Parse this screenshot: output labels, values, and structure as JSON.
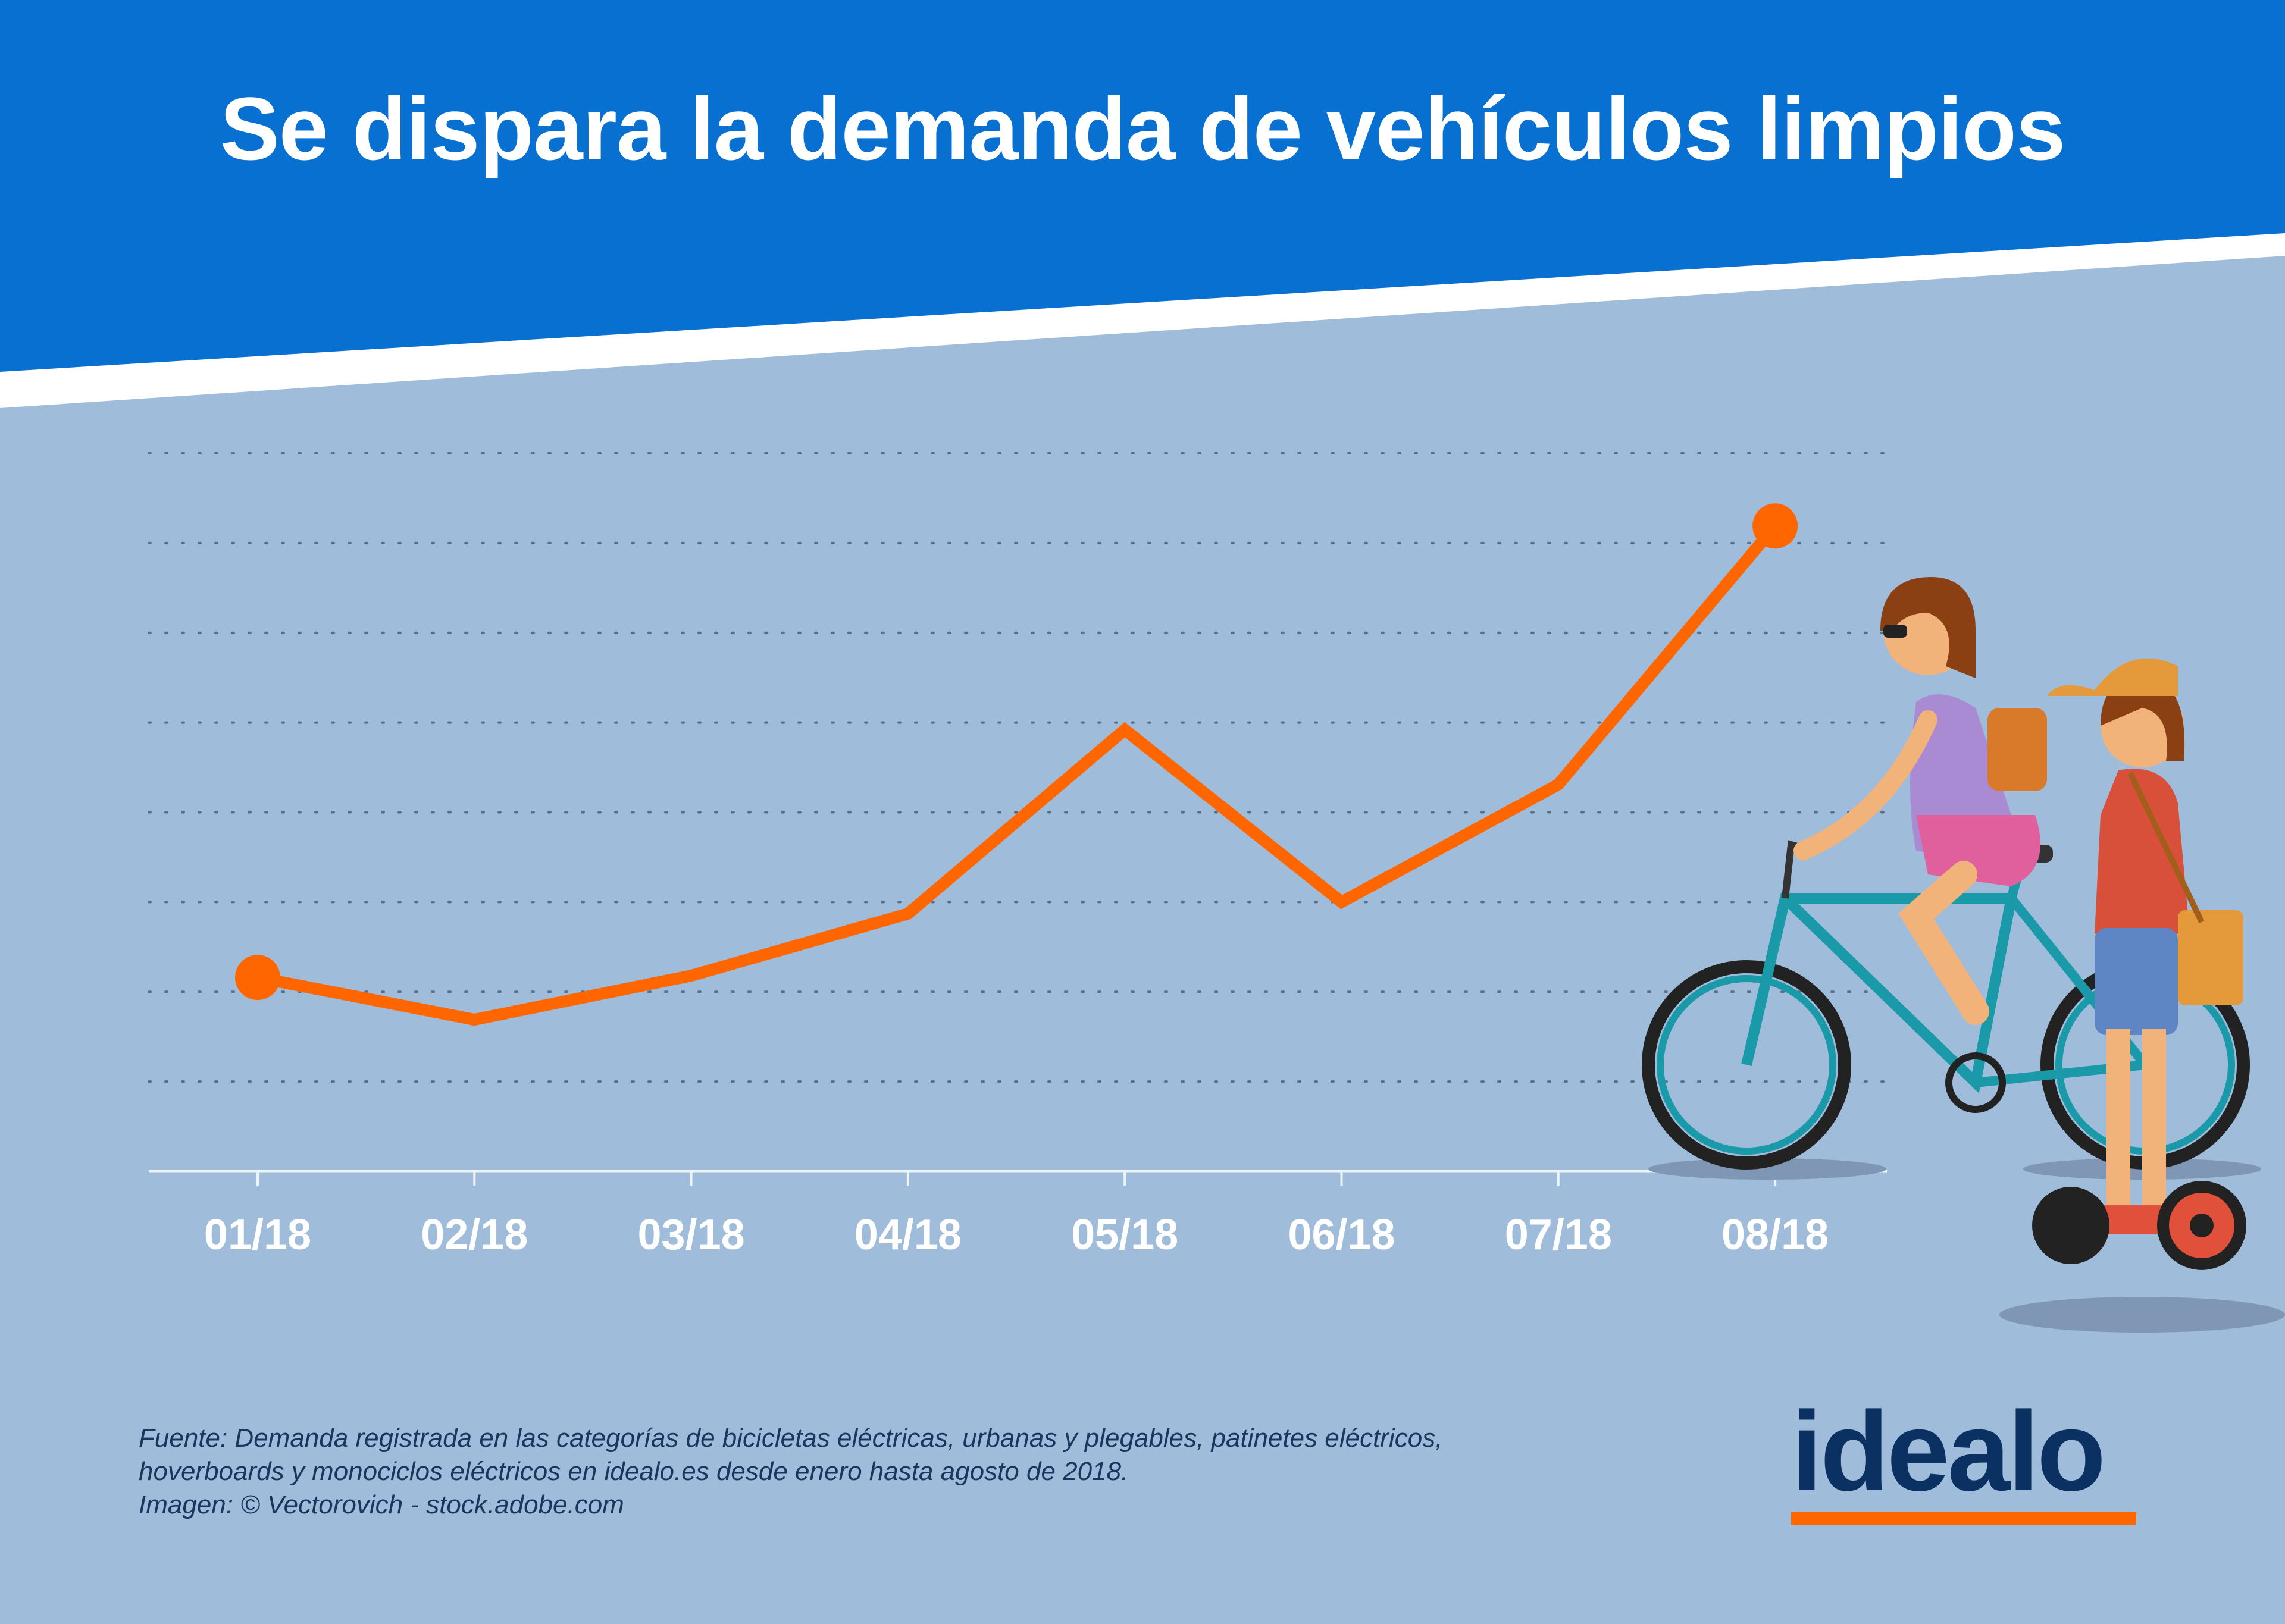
{
  "header": {
    "title": "Se dispara la demanda de vehículos limpios"
  },
  "colors": {
    "header_blue": "#0870d0",
    "background": "#a0bcdb",
    "line": "#ff6600",
    "text_dark": "#1b355e",
    "logo": "#0a3161"
  },
  "chart_data": {
    "type": "line",
    "title": "Se dispara la demanda de vehículos limpios",
    "xlabel": "",
    "ylabel": "",
    "categories": [
      "01/18",
      "02/18",
      "03/18",
      "04/18",
      "05/18",
      "06/18",
      "07/18",
      "08/18"
    ],
    "series": [
      {
        "values": [
          2.16,
          1.69,
          2.18,
          2.87,
          4.92,
          3.0,
          4.31,
          7.19
        ]
      }
    ],
    "ylim": [
      0,
      8
    ],
    "y_tick_labels_shown": false,
    "grid": "horizontal dotted",
    "end_markers": true,
    "color": "#ff6600"
  },
  "footer": {
    "lines": [
      "Fuente: Demanda registrada en las categorías de bicicletas eléctricas, urbanas y plegables, patinetes eléctricos,",
      "hoverboards y monociclos eléctricos en idealo.es desde enero hasta agosto de 2018.",
      "Imagen: © Vectorovich - stock.adobe.com"
    ]
  },
  "logo": {
    "text": "idealo"
  }
}
